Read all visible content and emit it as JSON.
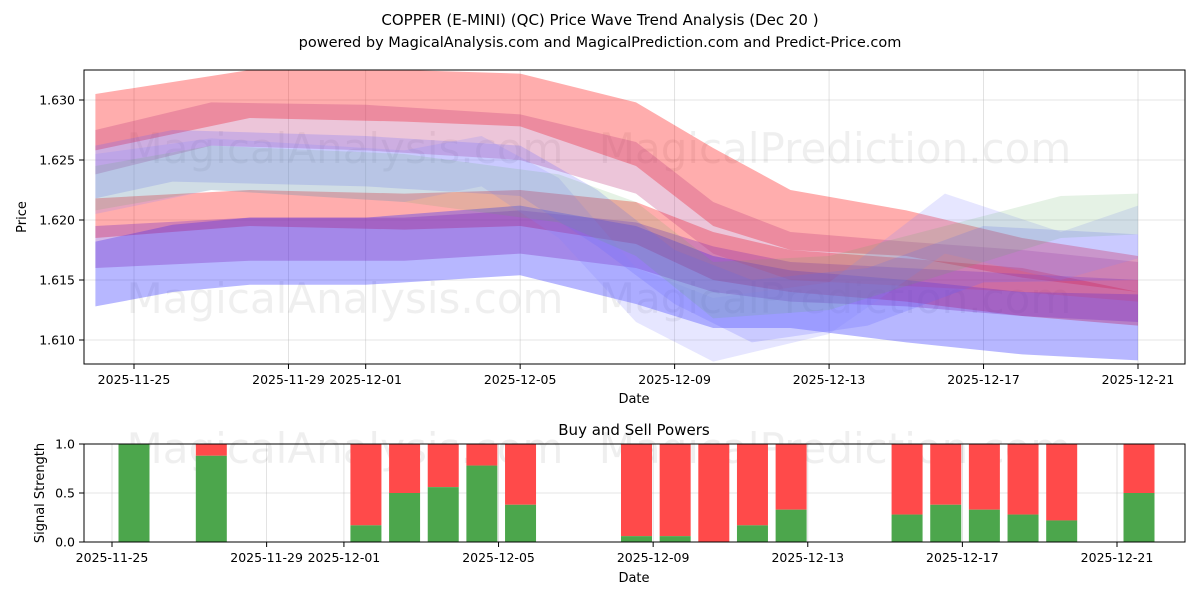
{
  "chart_data": [
    {
      "type": "area",
      "title": "COPPER (E-MINI) (QC) Price Wave Trend Analysis (Dec 20 )",
      "subtitle": "powered by MagicalAnalysis.com and MagicalPrediction.com and Predict-Price.com",
      "xlabel": "Date",
      "ylabel": "Price",
      "x_range": [
        "2025-11-23",
        "2025-12-22"
      ],
      "ylim": [
        1.608,
        1.6325
      ],
      "xticks": [
        "2025-11-25",
        "2025-11-29",
        "2025-12-01",
        "2025-12-05",
        "2025-12-09",
        "2025-12-13",
        "2025-12-17",
        "2025-12-21"
      ],
      "yticks": [
        "1.610",
        "1.615",
        "1.620",
        "1.625",
        "1.630"
      ],
      "grid": true,
      "watermarks": [
        "MagicalAnalysis.com",
        "MagicalPrediction.com",
        "MagicalAnalysis.com",
        "MagicalPrediction.com"
      ],
      "bands": [
        {
          "name": "red-upper",
          "color": "#ff0000",
          "opacity": 0.32,
          "points": [
            [
              "2025-11-24",
              1.6305,
              1.6258
            ],
            [
              "2025-11-28",
              1.6325,
              1.6285
            ],
            [
              "2025-12-02",
              1.6325,
              1.6282
            ],
            [
              "2025-12-05",
              1.6322,
              1.6278
            ],
            [
              "2025-12-08",
              1.6298,
              1.6245
            ],
            [
              "2025-12-10",
              1.626,
              1.6195
            ],
            [
              "2025-12-12",
              1.6225,
              1.6175
            ],
            [
              "2025-12-15",
              1.6208,
              1.617
            ],
            [
              "2025-12-18",
              1.6185,
              1.6152
            ],
            [
              "2025-12-21",
              1.617,
              1.614
            ]
          ]
        },
        {
          "name": "red-lower",
          "color": "#ff0000",
          "opacity": 0.32,
          "points": [
            [
              "2025-11-24",
              1.6218,
              1.6185
            ],
            [
              "2025-11-28",
              1.6225,
              1.6195
            ],
            [
              "2025-12-02",
              1.6222,
              1.6192
            ],
            [
              "2025-12-05",
              1.6225,
              1.6195
            ],
            [
              "2025-12-08",
              1.6215,
              1.618
            ],
            [
              "2025-12-10",
              1.619,
              1.615
            ],
            [
              "2025-12-12",
              1.6175,
              1.614
            ],
            [
              "2025-12-15",
              1.6168,
              1.6132
            ],
            [
              "2025-12-18",
              1.616,
              1.612
            ],
            [
              "2025-12-21",
              1.614,
              1.6112
            ]
          ]
        },
        {
          "name": "blue-lower",
          "color": "#2020ff",
          "opacity": 0.32,
          "points": [
            [
              "2025-11-24",
              1.6182,
              1.6128
            ],
            [
              "2025-11-26",
              1.6196,
              1.614
            ],
            [
              "2025-11-28",
              1.6202,
              1.6146
            ],
            [
              "2025-12-01",
              1.6202,
              1.6146
            ],
            [
              "2025-12-05",
              1.6212,
              1.6154
            ],
            [
              "2025-12-08",
              1.6195,
              1.613
            ],
            [
              "2025-12-10",
              1.617,
              1.611
            ],
            [
              "2025-12-12",
              1.6158,
              1.611
            ],
            [
              "2025-12-15",
              1.615,
              1.6098
            ],
            [
              "2025-12-18",
              1.614,
              1.6088
            ],
            [
              "2025-12-21",
              1.6138,
              1.6083
            ]
          ]
        },
        {
          "name": "purple-mid",
          "color": "#8030c0",
          "opacity": 0.35,
          "points": [
            [
              "2025-11-24",
              1.6195,
              1.616
            ],
            [
              "2025-11-28",
              1.6202,
              1.6166
            ],
            [
              "2025-12-02",
              1.6202,
              1.6166
            ],
            [
              "2025-12-05",
              1.6208,
              1.6172
            ],
            [
              "2025-12-08",
              1.6198,
              1.616
            ],
            [
              "2025-12-10",
              1.6178,
              1.614
            ],
            [
              "2025-12-12",
              1.6165,
              1.6132
            ],
            [
              "2025-12-15",
              1.616,
              1.6128
            ],
            [
              "2025-12-18",
              1.6155,
              1.612
            ],
            [
              "2025-12-21",
              1.615,
              1.6115
            ]
          ]
        },
        {
          "name": "pink-mid",
          "color": "#c04080",
          "opacity": 0.3,
          "points": [
            [
              "2025-11-24",
              1.6275,
              1.6238
            ],
            [
              "2025-11-27",
              1.6298,
              1.6262
            ],
            [
              "2025-12-01",
              1.6296,
              1.6258
            ],
            [
              "2025-12-05",
              1.6288,
              1.625
            ],
            [
              "2025-12-08",
              1.6265,
              1.6222
            ],
            [
              "2025-12-10",
              1.6215,
              1.6172
            ],
            [
              "2025-12-12",
              1.619,
              1.615
            ],
            [
              "2025-12-15",
              1.6182,
              1.6145
            ],
            [
              "2025-12-18",
              1.6175,
              1.614
            ],
            [
              "2025-12-21",
              1.6165,
              1.6132
            ]
          ]
        },
        {
          "name": "blue-wave-1",
          "color": "#6060ff",
          "opacity": 0.22,
          "points": [
            [
              "2025-11-24",
              1.6262,
              1.6218
            ],
            [
              "2025-11-26",
              1.6275,
              1.6232
            ],
            [
              "2025-12-01",
              1.627,
              1.6228
            ],
            [
              "2025-12-05",
              1.6262,
              1.622
            ],
            [
              "2025-12-07",
              1.6225,
              1.6178
            ],
            [
              "2025-12-09",
              1.6175,
              1.613
            ],
            [
              "2025-12-11",
              1.615,
              1.6098
            ],
            [
              "2025-12-14",
              1.616,
              1.6112
            ],
            [
              "2025-12-17",
              1.6195,
              1.6148
            ],
            [
              "2025-12-21",
              1.6188,
              1.615
            ]
          ]
        },
        {
          "name": "blue-wave-2",
          "color": "#8080ff",
          "opacity": 0.2,
          "points": [
            [
              "2025-11-24",
              1.6255,
              1.6205
            ],
            [
              "2025-11-27",
              1.6268,
              1.6225
            ],
            [
              "2025-12-02",
              1.6258,
              1.6215
            ],
            [
              "2025-12-04",
              1.627,
              1.6228
            ],
            [
              "2025-12-06",
              1.6235,
              1.6185
            ],
            [
              "2025-12-08",
              1.616,
              1.6115
            ],
            [
              "2025-12-10",
              1.6135,
              1.6082
            ],
            [
              "2025-12-13",
              1.6148,
              1.6105
            ],
            [
              "2025-12-16",
              1.6222,
              1.6172
            ],
            [
              "2025-12-19",
              1.619,
              1.615
            ],
            [
              "2025-12-21",
              1.6212,
              1.6168
            ]
          ]
        },
        {
          "name": "green-wave",
          "color": "#60b060",
          "opacity": 0.16,
          "points": [
            [
              "2025-11-24",
              1.6245,
              1.6208
            ],
            [
              "2025-11-27",
              1.6262,
              1.6225
            ],
            [
              "2025-12-02",
              1.6255,
              1.6215
            ],
            [
              "2025-12-06",
              1.6238,
              1.6198
            ],
            [
              "2025-12-08",
              1.6215,
              1.617
            ],
            [
              "2025-12-10",
              1.6165,
              1.6118
            ],
            [
              "2025-12-13",
              1.617,
              1.6125
            ],
            [
              "2025-12-16",
              1.6195,
              1.6155
            ],
            [
              "2025-12-19",
              1.622,
              1.6185
            ],
            [
              "2025-12-21",
              1.6222,
              1.6188
            ]
          ]
        }
      ]
    },
    {
      "type": "bar",
      "title": "Buy and Sell Powers",
      "xlabel": "Date",
      "ylabel": "Signal Strength",
      "x_range": [
        "2025-11-24",
        "2025-12-22"
      ],
      "ylim": [
        0,
        1.0
      ],
      "xticks": [
        "2025-11-25",
        "2025-11-29",
        "2025-12-01",
        "2025-12-05",
        "2025-12-09",
        "2025-12-13",
        "2025-12-17",
        "2025-12-21"
      ],
      "yticks": [
        "0.0",
        "0.5",
        "1.0"
      ],
      "grid": true,
      "colors": {
        "buy": "#4ca64c",
        "sell": "#ff4a4a"
      },
      "series": [
        {
          "name": "buy",
          "color": "#4ca64c"
        },
        {
          "name": "sell",
          "color": "#ff4a4a"
        }
      ],
      "bars": [
        {
          "date": "2025-11-25",
          "buy": 1.0
        },
        {
          "date": "2025-11-27",
          "buy": 0.88
        },
        {
          "date": "2025-12-01",
          "buy": 0.17
        },
        {
          "date": "2025-12-02",
          "buy": 0.5
        },
        {
          "date": "2025-12-03",
          "buy": 0.56
        },
        {
          "date": "2025-12-04",
          "buy": 0.78
        },
        {
          "date": "2025-12-05",
          "buy": 0.38
        },
        {
          "date": "2025-12-08",
          "buy": 0.06
        },
        {
          "date": "2025-12-09",
          "buy": 0.06
        },
        {
          "date": "2025-12-10",
          "buy": 0.0
        },
        {
          "date": "2025-12-11",
          "buy": 0.17
        },
        {
          "date": "2025-12-12",
          "buy": 0.33
        },
        {
          "date": "2025-12-15",
          "buy": 0.28
        },
        {
          "date": "2025-12-16",
          "buy": 0.38
        },
        {
          "date": "2025-12-17",
          "buy": 0.33
        },
        {
          "date": "2025-12-18",
          "buy": 0.28
        },
        {
          "date": "2025-12-19",
          "buy": 0.22
        },
        {
          "date": "2025-12-21",
          "buy": 0.5
        }
      ]
    }
  ]
}
